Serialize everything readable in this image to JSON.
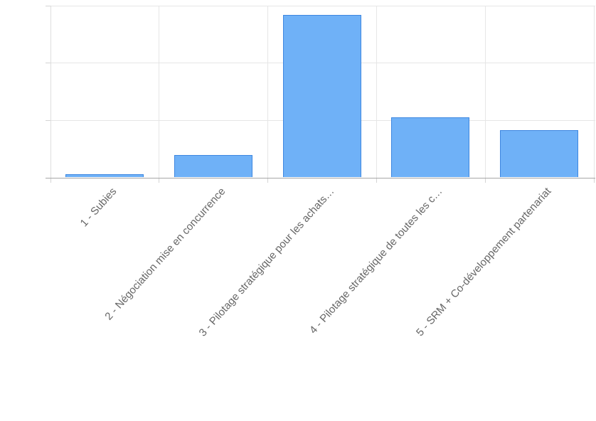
{
  "chart_data": {
    "type": "bar",
    "title": "",
    "xlabel": "",
    "ylabel": "",
    "categories": [
      "1 - Subies",
      "2 - Négociation mise en concurrence",
      "3 - Pilotage stratégique pour les achats…",
      "4 - Pilotage stratégique de toutes les c…",
      "5 - SRM + Co-développement partenariat"
    ],
    "values": [
      1.1,
      7.8,
      56.6,
      20.9,
      16.6
    ],
    "ylim": [
      0,
      60
    ],
    "ytick_step": 20,
    "y_tick_labels_visible": false,
    "grid": true,
    "legend": "none",
    "x_label_rotation_deg": -48,
    "colors": {
      "bar_fill": "#6FB1F7",
      "bar_border": "#3E87E0",
      "gridline": "#e6e6e6",
      "axis_line": "#dedede",
      "baseline": "#a6a6a6",
      "tick": "#d4d4d4",
      "label_text": "#666666"
    }
  }
}
